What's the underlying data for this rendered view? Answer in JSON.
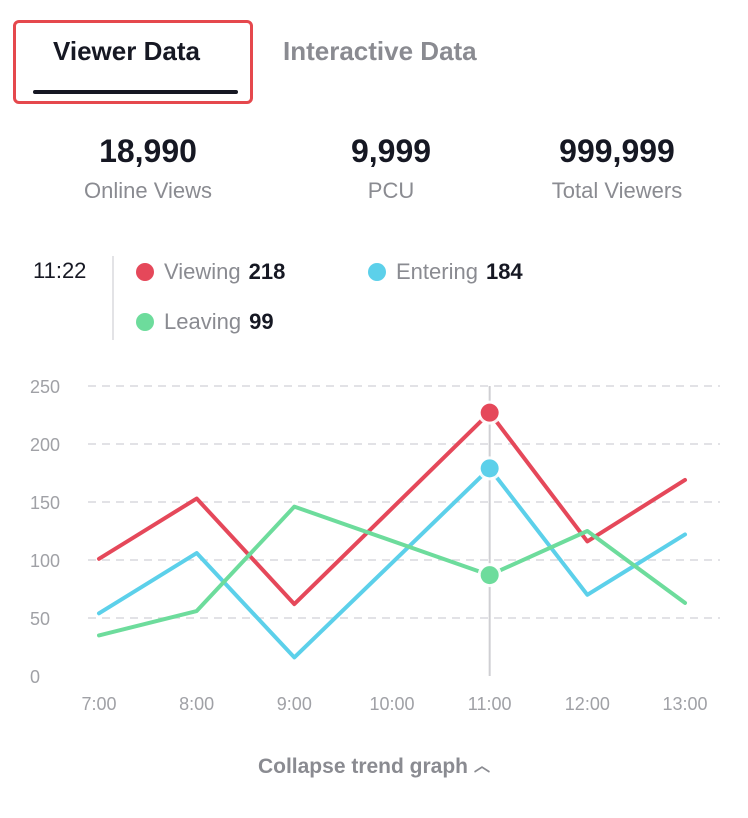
{
  "tabs": [
    {
      "label": "Viewer Data",
      "active": true
    },
    {
      "label": "Interactive Data",
      "active": false
    }
  ],
  "stats": [
    {
      "value": "18,990",
      "label": "Online Views"
    },
    {
      "value": "9,999",
      "label": "PCU"
    },
    {
      "value": "999,999",
      "label": "Total Viewers"
    }
  ],
  "legend": {
    "time": "11:22",
    "items": [
      {
        "name": "Viewing",
        "count": "218",
        "color": "#e5485a"
      },
      {
        "name": "Entering",
        "count": "184",
        "color": "#5cd0ea"
      },
      {
        "name": "Leaving",
        "count": "99",
        "color": "#6ddc9c"
      }
    ]
  },
  "collapse": {
    "label": "Collapse trend graph",
    "icon": "chevron-up-icon"
  },
  "chart_data": {
    "type": "line",
    "categories": [
      "7:00",
      "8:00",
      "9:00",
      "10:00",
      "11:00",
      "12:00",
      "13:00"
    ],
    "ylim": [
      0,
      250
    ],
    "yticks": [
      0,
      50,
      100,
      150,
      200,
      250
    ],
    "grid": true,
    "highlight_index": 4,
    "series": [
      {
        "name": "Viewing",
        "color": "#e5485a",
        "values": [
          101,
          153,
          62,
          null,
          227,
          116,
          169
        ]
      },
      {
        "name": "Entering",
        "color": "#5cd0ea",
        "values": [
          54,
          106,
          16,
          null,
          179,
          70,
          122
        ]
      },
      {
        "name": "Leaving",
        "color": "#6ddc9c",
        "values": [
          35,
          56,
          146,
          null,
          87,
          125,
          63
        ]
      }
    ]
  }
}
